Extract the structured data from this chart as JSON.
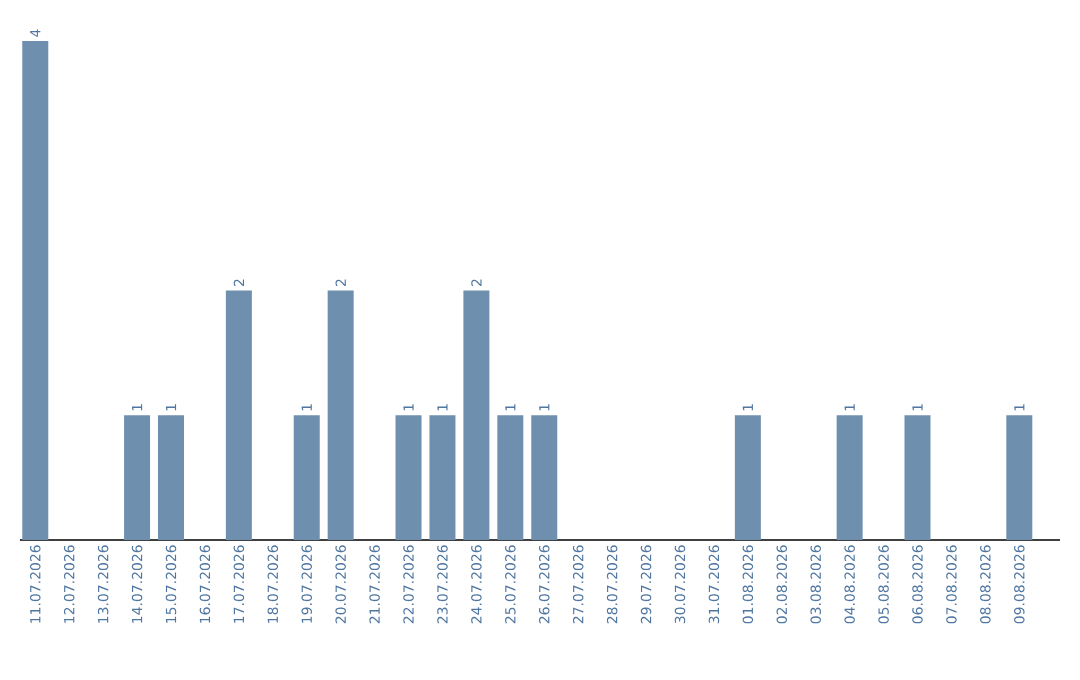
{
  "chart_data": {
    "type": "bar",
    "categories": [
      "11.07.2026",
      "12.07.2026",
      "13.07.2026",
      "14.07.2026",
      "15.07.2026",
      "16.07.2026",
      "17.07.2026",
      "18.07.2026",
      "19.07.2026",
      "20.07.2026",
      "21.07.2026",
      "22.07.2026",
      "23.07.2026",
      "24.07.2026",
      "25.07.2026",
      "26.07.2026",
      "27.07.2026",
      "28.07.2026",
      "29.07.2026",
      "30.07.2026",
      "31.07.2026",
      "01.08.2026",
      "02.08.2026",
      "03.08.2026",
      "04.08.2026",
      "05.08.2026",
      "06.08.2026",
      "07.08.2026",
      "08.08.2026",
      "09.08.2026"
    ],
    "values": [
      4,
      0,
      0,
      1,
      1,
      0,
      2,
      0,
      1,
      2,
      0,
      1,
      1,
      2,
      1,
      1,
      0,
      0,
      0,
      0,
      0,
      1,
      0,
      0,
      1,
      0,
      1,
      0,
      0,
      1
    ],
    "value_labels": [
      "4",
      null,
      null,
      "1",
      "1",
      null,
      "2",
      null,
      "1",
      "2",
      null,
      "1",
      "1",
      "2",
      "1",
      "1",
      null,
      null,
      null,
      null,
      null,
      "1",
      null,
      null,
      "1",
      null,
      "1",
      null,
      null,
      "1"
    ],
    "color": "#6e8fae"
  }
}
